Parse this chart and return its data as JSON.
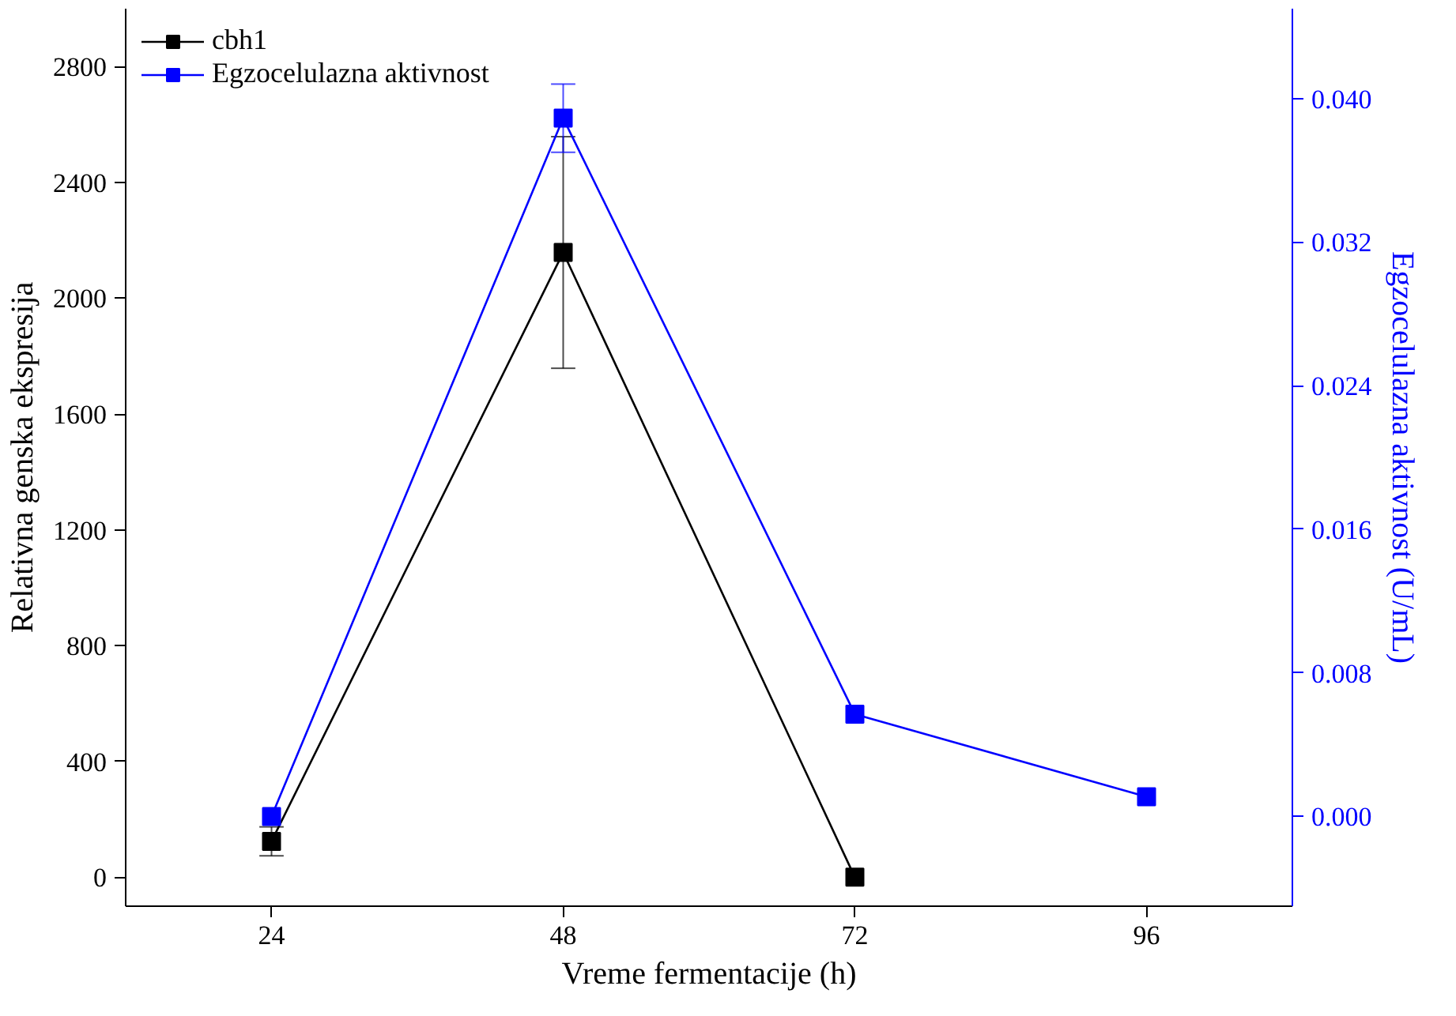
{
  "chart_data": {
    "type": "line",
    "xlabel": "Vreme fermentacije (h)",
    "ylabel": "Relativna genska ekspresija",
    "y2label": "Egzocelulazna aktivnost (U/mL)",
    "x": [
      24,
      48,
      72,
      96
    ],
    "xlim": [
      12,
      108
    ],
    "xticks": [
      24,
      48,
      72,
      96
    ],
    "ylim": [
      -100,
      3000
    ],
    "yticks": [
      0,
      400,
      800,
      1200,
      1600,
      2000,
      2400,
      2800
    ],
    "y2lim": [
      -0.005,
      0.045
    ],
    "y2ticks": [
      {
        "value": 0,
        "label": "0.000"
      },
      {
        "value": 0.008,
        "label": "0.008"
      },
      {
        "value": 0.016,
        "label": "0.016"
      },
      {
        "value": 0.024,
        "label": "0.024"
      },
      {
        "value": 0.032,
        "label": "0.032"
      },
      {
        "value": 0.04,
        "label": "0.040"
      }
    ],
    "series": [
      {
        "name": "cbh1",
        "color": "#000000",
        "values": [
          124,
          2158,
          0,
          null
        ],
        "errors": [
          50,
          400,
          null,
          null
        ]
      },
      {
        "name": "Egzocelulazna aktivnost",
        "color": "#0000ff",
        "axis": "y2",
        "values": [
          0.0,
          0.0389,
          0.0057,
          0.0011
        ],
        "errors": [
          null,
          0.0019,
          null,
          null
        ]
      }
    ],
    "marker": "square",
    "line_style": "solid",
    "grid": false,
    "legend": "top left"
  }
}
